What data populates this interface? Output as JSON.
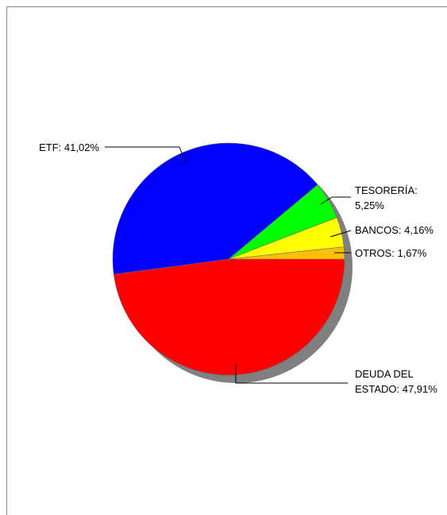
{
  "chart_data": {
    "type": "pie",
    "title": "",
    "legend": "none",
    "slices": [
      {
        "label": "DEUDA DEL ESTADO",
        "value": 47.91,
        "display": [
          "DEUDA DEL",
          "ESTADO: 47,91%"
        ],
        "color": "#ff0000"
      },
      {
        "label": "ETF",
        "value": 41.02,
        "display": [
          "ETF: 41,02%"
        ],
        "color": "#0000ff"
      },
      {
        "label": "TESORERÍA",
        "value": 5.25,
        "display": [
          "TESORERÍA:",
          "5,25%"
        ],
        "color": "#00ff00"
      },
      {
        "label": "BANCOS",
        "value": 4.16,
        "display": [
          "BANCOS: 4,16%"
        ],
        "color": "#ffff00"
      },
      {
        "label": "OTROS",
        "value": 1.67,
        "display": [
          "OTROS: 1,67%"
        ],
        "color": "#ffc000"
      }
    ],
    "shadow_color": "#808080"
  }
}
